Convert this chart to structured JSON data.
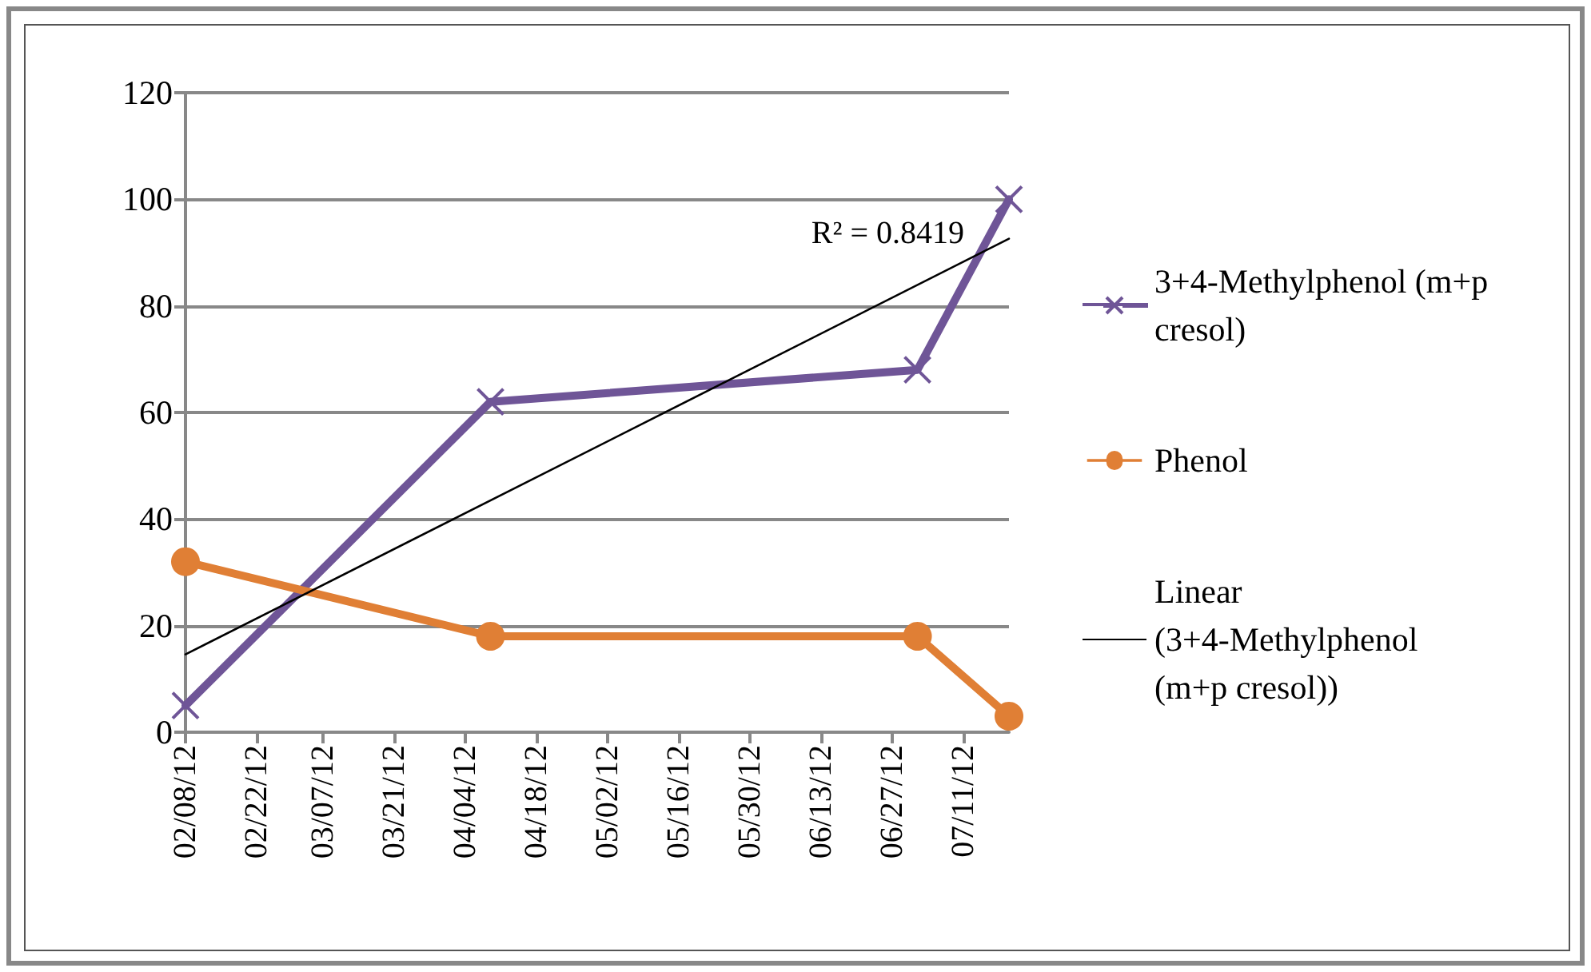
{
  "chart_data": {
    "type": "line",
    "series": [
      {
        "name": "3+4-Methylphenol (m+p cresol)",
        "color": "#6f5597",
        "marker": "cross",
        "x": [
          "--02-08",
          "--04-09",
          "--07-02",
          "--07-20"
        ],
        "values": [
          5,
          62,
          68,
          100
        ]
      },
      {
        "name": "Phenol",
        "color": "#e07f35",
        "marker": "circle",
        "x": [
          "--02-08",
          "--04-09",
          "--07-02",
          "--07-20"
        ],
        "values": [
          32,
          18,
          18,
          3
        ]
      },
      {
        "name": "Linear (3+4-Methylphenol (m+p cresol))",
        "color": "#000000",
        "marker": "none",
        "x": [
          "--02-08",
          "--07-20"
        ],
        "values": [
          14.6,
          92.6
        ]
      }
    ],
    "xlim": [
      "--02-08",
      "--07-20"
    ],
    "xticks": [
      {
        "value": "--02-08",
        "label": "02/08/12"
      },
      {
        "value": "--02-22",
        "label": "02/22/12"
      },
      {
        "value": "--03-07",
        "label": "03/07/12"
      },
      {
        "value": "--03-21",
        "label": "03/21/12"
      },
      {
        "value": "--04-04",
        "label": "04/04/12"
      },
      {
        "value": "--04-18",
        "label": "04/18/12"
      },
      {
        "value": "--05-02",
        "label": "05/02/12"
      },
      {
        "value": "--05-16",
        "label": "05/16/12"
      },
      {
        "value": "--05-30",
        "label": "05/30/12"
      },
      {
        "value": "--06-13",
        "label": "06/13/12"
      },
      {
        "value": "--06-27",
        "label": "06/27/12"
      },
      {
        "value": "--07-11",
        "label": "07/11/12"
      }
    ],
    "ylim": [
      0,
      120
    ],
    "yticks": [
      0,
      20,
      40,
      60,
      80,
      100,
      120
    ],
    "annotations": [
      "R² = 0.8419"
    ],
    "grid": "y",
    "legend": "right",
    "line_style": "solid"
  }
}
